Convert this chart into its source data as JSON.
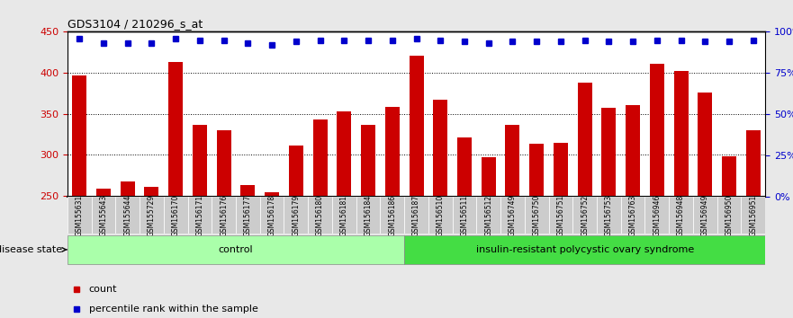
{
  "title": "GDS3104 / 210296_s_at",
  "samples": [
    "GSM155631",
    "GSM155643",
    "GSM155644",
    "GSM155729",
    "GSM156170",
    "GSM156171",
    "GSM156176",
    "GSM156177",
    "GSM156178",
    "GSM156179",
    "GSM156180",
    "GSM156181",
    "GSM156184",
    "GSM156186",
    "GSM156187",
    "GSM156510",
    "GSM156511",
    "GSM156512",
    "GSM156749",
    "GSM156750",
    "GSM156751",
    "GSM156752",
    "GSM156753",
    "GSM156763",
    "GSM156946",
    "GSM156948",
    "GSM156949",
    "GSM156950",
    "GSM156951"
  ],
  "counts": [
    397,
    258,
    267,
    261,
    413,
    336,
    330,
    263,
    254,
    311,
    343,
    353,
    336,
    358,
    421,
    367,
    321,
    297,
    336,
    313,
    314,
    388,
    357,
    360,
    411,
    402,
    376,
    298,
    330
  ],
  "percentile_pct": [
    96,
    93,
    93,
    93,
    96,
    95,
    95,
    93,
    92,
    94,
    95,
    95,
    95,
    95,
    96,
    95,
    94,
    93,
    94,
    94,
    94,
    95,
    94,
    94,
    95,
    95,
    94,
    94,
    95
  ],
  "group_labels": [
    "control",
    "insulin-resistant polycystic ovary syndrome"
  ],
  "group_sizes": [
    14,
    15
  ],
  "group_colors": [
    "#aaffaa",
    "#44dd44"
  ],
  "bar_color": "#cc0000",
  "dot_color": "#0000cc",
  "ylim_left": [
    248,
    450
  ],
  "ylim_right": [
    0,
    100
  ],
  "yticks_left": [
    250,
    300,
    350,
    400,
    450
  ],
  "yticks_right": [
    0,
    25,
    50,
    75,
    100
  ],
  "ytick_labels_right": [
    "0%",
    "25%",
    "50%",
    "75%",
    "100%"
  ],
  "bg_color": "#e8e8e8",
  "plot_bg": "#ffffff"
}
